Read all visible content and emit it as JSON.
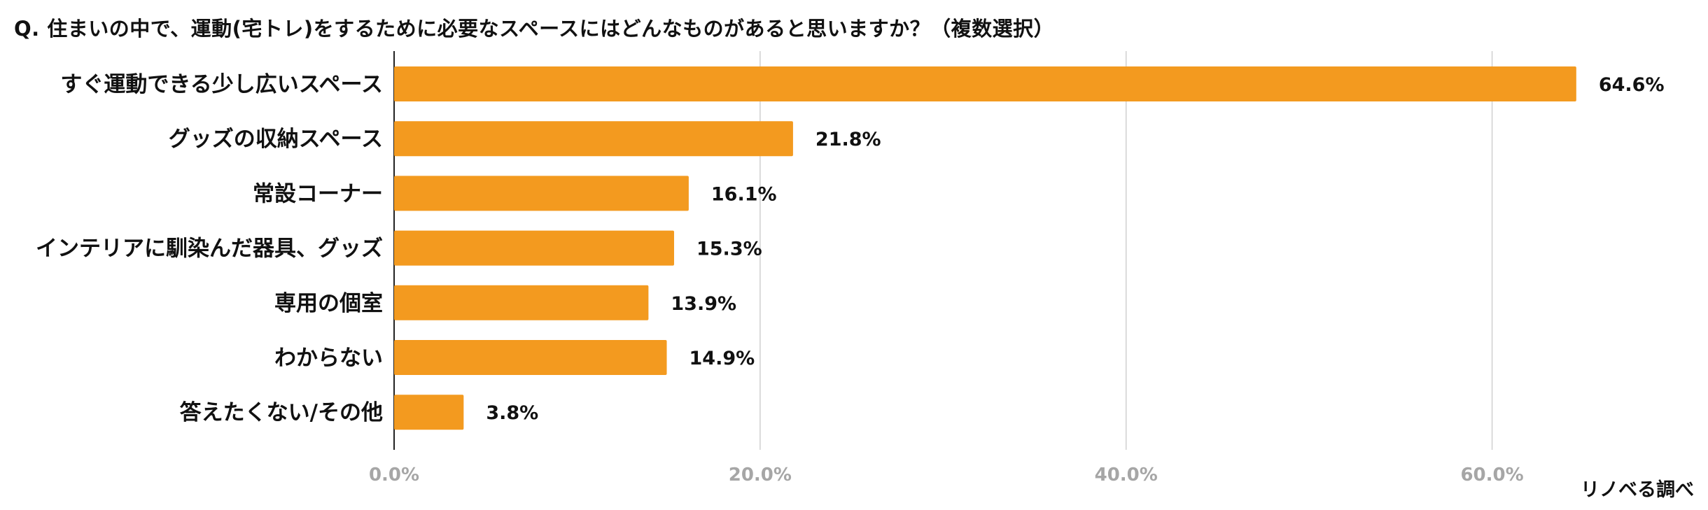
{
  "question": "Q.  住まいの中で、運動(宅トレ)をするために必要なスペースにはどんなものがあると思いますか？（複数選択）",
  "credit": "リノベる調べ",
  "colors": {
    "bar": "#F39A1F",
    "grid": "#D0D0D0",
    "axis": "#222222",
    "tick_text": "#A6A6A6",
    "label_text": "#111111"
  },
  "chart_data": {
    "type": "bar",
    "orientation": "horizontal",
    "categories": [
      "すぐ運動できる少し広いスペース",
      "グッズの収納スペース",
      "常設コーナー",
      "インテリアに馴染んだ器具、グッズ",
      "専用の個室",
      "わからない",
      "答えたくない/その他"
    ],
    "values": [
      64.6,
      21.8,
      16.1,
      15.3,
      13.9,
      14.9,
      3.8
    ],
    "value_labels": [
      "64.6%",
      "21.8%",
      "16.1%",
      "15.3%",
      "13.9%",
      "14.9%",
      "3.8%"
    ],
    "xlim": [
      0,
      70
    ],
    "x_ticks": [
      0,
      20,
      40,
      60
    ],
    "x_tick_labels": [
      "0.0%",
      "20.0%",
      "40.0%",
      "60.0%"
    ],
    "grid": true
  }
}
